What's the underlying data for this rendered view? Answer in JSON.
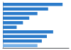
{
  "chart_data": {
    "type": "bar",
    "orientation": "horizontal",
    "categories": [
      null,
      null,
      null,
      null,
      null,
      null,
      null,
      null,
      null,
      null
    ],
    "values": [
      95,
      72,
      55,
      42,
      32,
      22,
      80,
      70,
      62,
      55
    ],
    "colors": [
      "#2b7bca",
      "#2b7bca",
      "#2b7bca",
      "#2b7bca",
      "#2b7bca",
      "#2b7bca",
      "#2b7bca",
      "#2b7bca",
      "#2b7bca",
      "#7ab3e8"
    ],
    "xlim": [
      0,
      105
    ],
    "grid": false,
    "tick_labels": false
  }
}
